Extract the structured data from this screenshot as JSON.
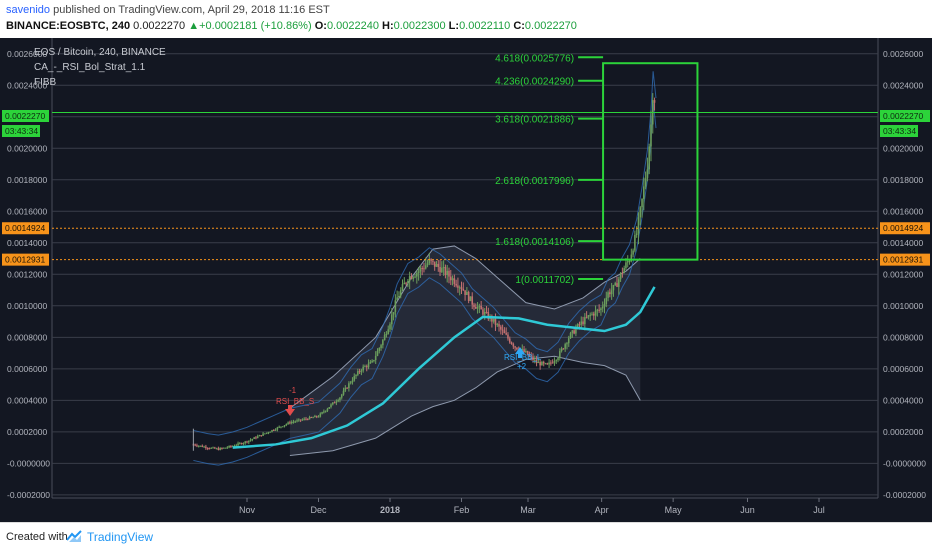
{
  "header": {
    "author": "savenido",
    "published_text": " published on TradingView.com, April 29, 2018 11:16 EST",
    "symbol": "BINANCE:EOSBTC, 240",
    "last_price": "0.0022270",
    "change": "▲+0.0002181 (+10.86%)",
    "o_label": "O:",
    "o_value": "0.0022240",
    "h_label": "H:",
    "h_value": "0.0022300",
    "l_label": "L:",
    "l_value": "0.0022110",
    "c_label": "C:",
    "c_value": "0.0022270"
  },
  "legend": {
    "line1": "EOS / Bitcoin, 240, BINANCE",
    "line2": "CA_-_RSI_Bol_Strat_1.1",
    "line3": "FIBB"
  },
  "price_badges": {
    "current": "0.0022270",
    "timer": "03:43:34",
    "orange_upper": "0.0014924",
    "orange_lower": "0.0012931"
  },
  "annotations": {
    "rsi_label": "RSI_BB_L",
    "rsi_sub": "+2",
    "red_top": "-1",
    "red_label": "RSI_BB_S"
  },
  "footer": {
    "created_with": "Created with",
    "brand": "TradingView"
  },
  "colors": {
    "background": "#131722",
    "grid": "#3a3e4a",
    "axis_text": "#b2b5be",
    "fib": "#2cd33a",
    "orange": "#f7931a",
    "teal": "#2fc9d6",
    "band": "#8e99ad",
    "candle_up": "#6b9e5c",
    "candle_down": "#c27070"
  },
  "chart_data": {
    "type": "candlestick",
    "title": "EOS / Bitcoin, 240, BINANCE",
    "y_ticks": [
      "-0.0002000",
      "-0.0000000",
      "0.0002000",
      "0.0004000",
      "0.0006000",
      "0.0008000",
      "0.0010000",
      "0.0012000",
      "0.0014000",
      "0.0016000",
      "0.0018000",
      "0.0020000",
      "0.0022000",
      "0.0024000",
      "0.0026000"
    ],
    "ylim": [
      -0.00022,
      0.0027
    ],
    "x_ticks": [
      {
        "label": "Nov",
        "t": 0.0
      },
      {
        "label": "Dec",
        "t": 1.0
      },
      {
        "label": "2018",
        "t": 2.0
      },
      {
        "label": "Feb",
        "t": 3.0
      },
      {
        "label": "Mar",
        "t": 3.93
      },
      {
        "label": "Apr",
        "t": 4.96
      },
      {
        "label": "May",
        "t": 5.96
      },
      {
        "label": "Jun",
        "t": 7.0
      },
      {
        "label": "Jul",
        "t": 8.0
      }
    ],
    "price_path": [
      [
        -0.75,
        0.00012
      ],
      [
        -0.55,
        0.0001
      ],
      [
        -0.4,
        9e-05
      ],
      [
        -0.2,
        0.00011
      ],
      [
        0.0,
        0.00014
      ],
      [
        0.2,
        0.00018
      ],
      [
        0.4,
        0.00022
      ],
      [
        0.6,
        0.00026
      ],
      [
        0.8,
        0.00028
      ],
      [
        1.0,
        0.0003
      ],
      [
        1.15,
        0.00036
      ],
      [
        1.3,
        0.00042
      ],
      [
        1.45,
        0.00052
      ],
      [
        1.6,
        0.0006
      ],
      [
        1.75,
        0.00064
      ],
      [
        1.9,
        0.00078
      ],
      [
        2.0,
        0.0009
      ],
      [
        2.1,
        0.00105
      ],
      [
        2.25,
        0.00118
      ],
      [
        2.4,
        0.00122
      ],
      [
        2.55,
        0.00128
      ],
      [
        2.7,
        0.00124
      ],
      [
        2.85,
        0.00118
      ],
      [
        3.0,
        0.00112
      ],
      [
        3.15,
        0.00102
      ],
      [
        3.3,
        0.00096
      ],
      [
        3.45,
        0.0009
      ],
      [
        3.6,
        0.00082
      ],
      [
        3.75,
        0.00074
      ],
      [
        3.9,
        0.0007
      ],
      [
        4.05,
        0.00064
      ],
      [
        4.2,
        0.00062
      ],
      [
        4.35,
        0.00068
      ],
      [
        4.5,
        0.0008
      ],
      [
        4.65,
        0.00088
      ],
      [
        4.8,
        0.00094
      ],
      [
        4.95,
        0.00098
      ],
      [
        5.05,
        0.00108
      ],
      [
        5.15,
        0.00112
      ],
      [
        5.25,
        0.00122
      ],
      [
        5.35,
        0.0013
      ],
      [
        5.45,
        0.00146
      ],
      [
        5.52,
        0.00165
      ],
      [
        5.6,
        0.0019
      ],
      [
        5.65,
        0.00215
      ],
      [
        5.68,
        0.0024
      ],
      [
        5.72,
        0.00223
      ]
    ],
    "moving_average": [
      [
        -0.2,
        0.0001
      ],
      [
        0.4,
        0.00012
      ],
      [
        0.9,
        0.00016
      ],
      [
        1.4,
        0.00024
      ],
      [
        1.9,
        0.00038
      ],
      [
        2.4,
        0.0006
      ],
      [
        2.9,
        0.0008
      ],
      [
        3.3,
        0.00093
      ],
      [
        3.8,
        0.00092
      ],
      [
        4.2,
        0.00088
      ],
      [
        4.6,
        0.00086
      ],
      [
        5.0,
        0.00084
      ],
      [
        5.3,
        0.00088
      ],
      [
        5.5,
        0.00096
      ],
      [
        5.7,
        0.00112
      ]
    ],
    "upper_band": [
      [
        0.6,
        0.00035
      ],
      [
        1.2,
        0.00055
      ],
      [
        1.8,
        0.0008
      ],
      [
        2.3,
        0.00118
      ],
      [
        2.6,
        0.00136
      ],
      [
        2.9,
        0.00138
      ],
      [
        3.2,
        0.0013
      ],
      [
        3.5,
        0.00118
      ],
      [
        3.9,
        0.00102
      ],
      [
        4.3,
        0.00098
      ],
      [
        4.7,
        0.00105
      ],
      [
        5.0,
        0.00115
      ],
      [
        5.3,
        0.00122
      ],
      [
        5.5,
        0.0013
      ]
    ],
    "lower_band": [
      [
        0.6,
        5e-05
      ],
      [
        1.2,
        8e-05
      ],
      [
        1.8,
        0.00016
      ],
      [
        2.3,
        0.0003
      ],
      [
        2.6,
        0.00036
      ],
      [
        2.9,
        0.0004
      ],
      [
        3.2,
        0.00048
      ],
      [
        3.5,
        0.00058
      ],
      [
        3.9,
        0.00066
      ],
      [
        4.3,
        0.00068
      ],
      [
        4.7,
        0.00064
      ],
      [
        5.0,
        0.00062
      ],
      [
        5.3,
        0.00056
      ],
      [
        5.5,
        0.0004
      ]
    ],
    "fib_levels": [
      {
        "label": "4.618(0.0025776)",
        "price": 0.0025776
      },
      {
        "label": "4.236(0.0024290)",
        "price": 0.002429
      },
      {
        "label": "3.618(0.0021886)",
        "price": 0.0021886
      },
      {
        "label": "2.618(0.0017996)",
        "price": 0.0017996
      },
      {
        "label": "1.618(0.0014106)",
        "price": 0.0014106
      },
      {
        "label": "1(0.0011702)",
        "price": 0.0011702
      }
    ],
    "fib_box": {
      "t_start": 4.98,
      "t_end": 6.3,
      "price_top": 0.00254,
      "price_bottom": 0.0012931
    },
    "current_price": 0.002227,
    "orange_lines": [
      0.0014924,
      0.0012931
    ]
  }
}
